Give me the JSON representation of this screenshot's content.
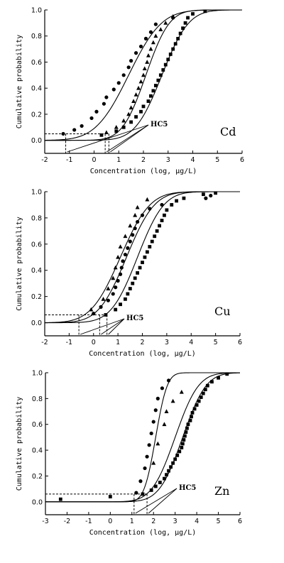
{
  "chart_data": [
    {
      "type": "scatter",
      "panel_label": "Cd",
      "xlabel": "Concentration (log,  μg/L)",
      "ylabel": "Cumulative probability",
      "annotation": "HC5",
      "xlim": [
        -2,
        6
      ],
      "ylim": [
        -0.1,
        1.0
      ],
      "xticks": [
        -2,
        -1,
        0,
        1,
        2,
        3,
        4,
        5,
        6
      ],
      "yticks": [
        0.0,
        0.2,
        0.4,
        0.6,
        0.8,
        1.0
      ],
      "hc5": [
        -1.15,
        0.45,
        0.6
      ],
      "hc5_level": 0.05,
      "series": [
        {
          "marker": "circle",
          "curve": {
            "mu": 1.4,
            "sigma": 1.05
          },
          "points": [
            [
              -1.25,
              0.05
            ],
            [
              -0.8,
              0.08
            ],
            [
              -0.5,
              0.11
            ],
            [
              -0.1,
              0.17
            ],
            [
              0.1,
              0.22
            ],
            [
              0.4,
              0.28
            ],
            [
              0.5,
              0.33
            ],
            [
              0.8,
              0.39
            ],
            [
              1.0,
              0.44
            ],
            [
              1.2,
              0.5
            ],
            [
              1.4,
              0.56
            ],
            [
              1.5,
              0.61
            ],
            [
              1.7,
              0.67
            ],
            [
              1.9,
              0.72
            ],
            [
              2.1,
              0.78
            ],
            [
              2.3,
              0.83
            ],
            [
              2.5,
              0.89
            ],
            [
              3.2,
              0.94
            ]
          ]
        },
        {
          "marker": "triangle",
          "curve": {
            "mu": 2.1,
            "sigma": 0.75
          },
          "points": [
            [
              0.5,
              0.06
            ],
            [
              0.9,
              0.1
            ],
            [
              1.2,
              0.15
            ],
            [
              1.4,
              0.2
            ],
            [
              1.5,
              0.25
            ],
            [
              1.6,
              0.3
            ],
            [
              1.7,
              0.35
            ],
            [
              1.8,
              0.4
            ],
            [
              1.9,
              0.45
            ],
            [
              2.0,
              0.5
            ],
            [
              2.05,
              0.55
            ],
            [
              2.15,
              0.6
            ],
            [
              2.2,
              0.65
            ],
            [
              2.3,
              0.7
            ],
            [
              2.4,
              0.75
            ],
            [
              2.5,
              0.8
            ],
            [
              2.7,
              0.85
            ],
            [
              2.9,
              0.9
            ],
            [
              3.2,
              0.95
            ]
          ]
        },
        {
          "marker": "square",
          "curve": {
            "mu": 2.75,
            "sigma": 0.85
          },
          "points": [
            [
              0.3,
              0.04
            ],
            [
              0.9,
              0.07
            ],
            [
              1.2,
              0.1
            ],
            [
              1.5,
              0.14
            ],
            [
              1.7,
              0.18
            ],
            [
              1.9,
              0.22
            ],
            [
              2.0,
              0.26
            ],
            [
              2.2,
              0.3
            ],
            [
              2.3,
              0.34
            ],
            [
              2.4,
              0.38
            ],
            [
              2.5,
              0.42
            ],
            [
              2.6,
              0.46
            ],
            [
              2.7,
              0.5
            ],
            [
              2.8,
              0.54
            ],
            [
              2.9,
              0.58
            ],
            [
              3.0,
              0.62
            ],
            [
              3.1,
              0.66
            ],
            [
              3.2,
              0.7
            ],
            [
              3.3,
              0.74
            ],
            [
              3.4,
              0.78
            ],
            [
              3.5,
              0.82
            ],
            [
              3.6,
              0.86
            ],
            [
              3.7,
              0.9
            ],
            [
              3.8,
              0.94
            ],
            [
              4.0,
              0.97
            ],
            [
              4.5,
              0.99
            ]
          ]
        }
      ]
    },
    {
      "type": "scatter",
      "panel_label": "Cu",
      "xlabel": "Concentration (log,  μg/L)",
      "ylabel": "Cumulative probability",
      "annotation": "HC5",
      "xlim": [
        -2,
        6
      ],
      "ylim": [
        -0.1,
        1.0
      ],
      "xticks": [
        -2,
        -1,
        0,
        1,
        2,
        3,
        4,
        5,
        6
      ],
      "yticks": [
        0.0,
        0.2,
        0.4,
        0.6,
        0.8,
        1.0
      ],
      "hc5": [
        -0.6,
        0.25,
        0.55
      ],
      "hc5_level": 0.06,
      "series": [
        {
          "marker": "triangle",
          "curve": {
            "mu": 1.1,
            "sigma": 0.95
          },
          "points": [
            [
              -0.1,
              0.1
            ],
            [
              0.4,
              0.18
            ],
            [
              0.6,
              0.26
            ],
            [
              0.8,
              0.34
            ],
            [
              0.9,
              0.42
            ],
            [
              1.0,
              0.5
            ],
            [
              1.1,
              0.58
            ],
            [
              1.3,
              0.66
            ],
            [
              1.5,
              0.74
            ],
            [
              1.7,
              0.82
            ],
            [
              1.8,
              0.88
            ],
            [
              2.2,
              0.94
            ]
          ]
        },
        {
          "marker": "circle",
          "curve": {
            "mu": 1.35,
            "sigma": 0.9
          },
          "points": [
            [
              0.0,
              0.07
            ],
            [
              0.3,
              0.12
            ],
            [
              0.6,
              0.17
            ],
            [
              0.8,
              0.22
            ],
            [
              0.9,
              0.27
            ],
            [
              1.0,
              0.32
            ],
            [
              1.1,
              0.37
            ],
            [
              1.15,
              0.42
            ],
            [
              1.2,
              0.47
            ],
            [
              1.3,
              0.52
            ],
            [
              1.4,
              0.57
            ],
            [
              1.5,
              0.62
            ],
            [
              1.6,
              0.67
            ],
            [
              1.7,
              0.72
            ],
            [
              1.8,
              0.77
            ],
            [
              2.0,
              0.82
            ],
            [
              2.3,
              0.87
            ],
            [
              2.8,
              0.9
            ],
            [
              4.6,
              0.95
            ],
            [
              4.8,
              0.97
            ]
          ]
        },
        {
          "marker": "square",
          "curve": {
            "mu": 1.8,
            "sigma": 0.85
          },
          "points": [
            [
              0.5,
              0.06
            ],
            [
              0.9,
              0.1
            ],
            [
              1.1,
              0.14
            ],
            [
              1.3,
              0.18
            ],
            [
              1.4,
              0.22
            ],
            [
              1.5,
              0.26
            ],
            [
              1.6,
              0.3
            ],
            [
              1.7,
              0.34
            ],
            [
              1.8,
              0.38
            ],
            [
              1.9,
              0.42
            ],
            [
              2.0,
              0.46
            ],
            [
              2.1,
              0.5
            ],
            [
              2.2,
              0.54
            ],
            [
              2.3,
              0.58
            ],
            [
              2.4,
              0.62
            ],
            [
              2.5,
              0.66
            ],
            [
              2.6,
              0.7
            ],
            [
              2.7,
              0.74
            ],
            [
              2.8,
              0.78
            ],
            [
              2.9,
              0.82
            ],
            [
              3.0,
              0.86
            ],
            [
              3.2,
              0.9
            ],
            [
              3.4,
              0.93
            ],
            [
              3.7,
              0.95
            ],
            [
              4.5,
              0.98
            ],
            [
              5.0,
              0.99
            ]
          ]
        }
      ]
    },
    {
      "type": "scatter",
      "panel_label": "Zn",
      "xlabel": "Concentration (log,  μg/L)",
      "ylabel": "Cumulative probability",
      "annotation": "HC5",
      "xlim": [
        -3,
        6
      ],
      "ylim": [
        -0.1,
        1.0
      ],
      "xticks": [
        -3,
        -2,
        -1,
        0,
        1,
        2,
        3,
        4,
        5,
        6
      ],
      "yticks": [
        0.0,
        0.2,
        0.4,
        0.6,
        0.8,
        1.0
      ],
      "hc5": [
        1.1,
        1.7
      ],
      "hc5_level": 0.06,
      "series": [
        {
          "marker": "circle",
          "curve": {
            "mu": 2.1,
            "sigma": 0.42
          },
          "points": [
            [
              1.2,
              0.07
            ],
            [
              1.4,
              0.16
            ],
            [
              1.6,
              0.26
            ],
            [
              1.7,
              0.35
            ],
            [
              1.8,
              0.44
            ],
            [
              1.9,
              0.53
            ],
            [
              2.0,
              0.62
            ],
            [
              2.1,
              0.71
            ],
            [
              2.2,
              0.8
            ],
            [
              2.4,
              0.88
            ],
            [
              2.7,
              0.94
            ]
          ]
        },
        {
          "marker": "triangle",
          "curve": {
            "mu": 3.0,
            "sigma": 0.85
          },
          "points": [
            [
              2.0,
              0.3
            ],
            [
              2.2,
              0.45
            ],
            [
              2.5,
              0.6
            ],
            [
              2.6,
              0.7
            ],
            [
              2.9,
              0.78
            ],
            [
              3.3,
              0.85
            ]
          ]
        },
        {
          "marker": "square",
          "curve": {
            "mu": 3.35,
            "sigma": 0.85
          },
          "points": [
            [
              -2.3,
              0.02
            ],
            [
              0.0,
              0.04
            ],
            [
              1.5,
              0.06
            ],
            [
              1.9,
              0.09
            ],
            [
              2.1,
              0.12
            ],
            [
              2.3,
              0.15
            ],
            [
              2.5,
              0.18
            ],
            [
              2.6,
              0.21
            ],
            [
              2.7,
              0.24
            ],
            [
              2.8,
              0.27
            ],
            [
              2.9,
              0.3
            ],
            [
              3.0,
              0.33
            ],
            [
              3.1,
              0.36
            ],
            [
              3.2,
              0.39
            ],
            [
              3.3,
              0.42
            ],
            [
              3.35,
              0.45
            ],
            [
              3.4,
              0.48
            ],
            [
              3.45,
              0.51
            ],
            [
              3.5,
              0.54
            ],
            [
              3.55,
              0.57
            ],
            [
              3.6,
              0.6
            ],
            [
              3.7,
              0.63
            ],
            [
              3.75,
              0.66
            ],
            [
              3.8,
              0.69
            ],
            [
              3.9,
              0.72
            ],
            [
              4.0,
              0.75
            ],
            [
              4.1,
              0.78
            ],
            [
              4.2,
              0.81
            ],
            [
              4.3,
              0.84
            ],
            [
              4.4,
              0.87
            ],
            [
              4.5,
              0.9
            ],
            [
              4.7,
              0.93
            ],
            [
              5.0,
              0.96
            ],
            [
              5.4,
              0.99
            ]
          ]
        }
      ]
    }
  ]
}
